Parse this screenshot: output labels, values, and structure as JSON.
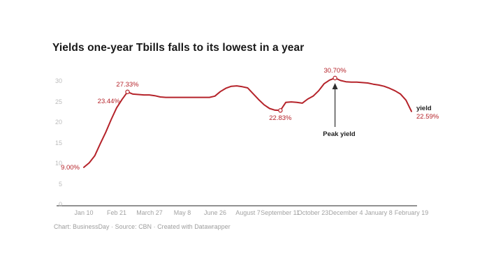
{
  "title": "Yields one-year Tbills falls to its lowest in a year",
  "footer": "Chart: BusinessDay · Source: CBN · Created with Datawrapper",
  "colors": {
    "line": "#b5232a",
    "point_label": "#b5232a",
    "axis_line": "#4f4f4f",
    "arrow": "#2e2e2e",
    "title_text": "#181818",
    "tick_text": "#a2a2a2",
    "footer_text": "#9b9b9b"
  },
  "chart_data": {
    "type": "line",
    "title": "Yields one-year Tbills falls to its lowest in a year",
    "xlabel": "",
    "ylabel": "",
    "ylim": [
      0,
      30
    ],
    "y_ticks": [
      0,
      5,
      10,
      15,
      20,
      25,
      30
    ],
    "grid": "off",
    "x_tick_labels": [
      "Jan 10",
      "Feb 21",
      "March 27",
      "May 8",
      "June 26",
      "August 7",
      "September 11",
      "October 23",
      "December 4",
      "January 8",
      "February 19"
    ],
    "x_tick_week_step": 6,
    "series": [
      {
        "name": "yield",
        "x_unit": "weeks",
        "values": [
          9.0,
          10.1,
          11.8,
          14.7,
          17.5,
          20.6,
          23.44,
          25.5,
          27.33,
          26.8,
          26.7,
          26.6,
          26.6,
          26.4,
          26.1,
          26.0,
          26.0,
          26.0,
          26.0,
          26.0,
          26.0,
          26.0,
          26.0,
          26.0,
          26.3,
          27.4,
          28.2,
          28.7,
          28.8,
          28.6,
          28.3,
          26.9,
          25.5,
          24.2,
          23.3,
          22.9,
          22.83,
          24.8,
          24.9,
          24.8,
          24.6,
          25.6,
          26.3,
          27.6,
          29.3,
          30.2,
          30.7,
          30.1,
          29.8,
          29.7,
          29.7,
          29.6,
          29.5,
          29.2,
          29.0,
          28.7,
          28.2,
          27.6,
          26.8,
          25.3,
          22.59
        ]
      }
    ],
    "point_labels": [
      {
        "week": 0,
        "value": 9.0,
        "text": "9.00%",
        "placement": "left",
        "marker": false
      },
      {
        "week": 6,
        "value": 23.44,
        "text": "23.44%",
        "placement": "above-left",
        "marker": false
      },
      {
        "week": 8,
        "value": 27.33,
        "text": "27.33%",
        "placement": "above",
        "marker": true
      },
      {
        "week": 36,
        "value": 22.83,
        "text": "22.83%",
        "placement": "below",
        "marker": true
      },
      {
        "week": 46,
        "value": 30.7,
        "text": "30.70%",
        "placement": "above",
        "marker": true
      }
    ],
    "final_label": {
      "series": "yield",
      "value": "22.59%"
    },
    "annotations": [
      {
        "text": "Peak yield",
        "arrow_to_week": 46
      }
    ],
    "legend_position": "none"
  }
}
